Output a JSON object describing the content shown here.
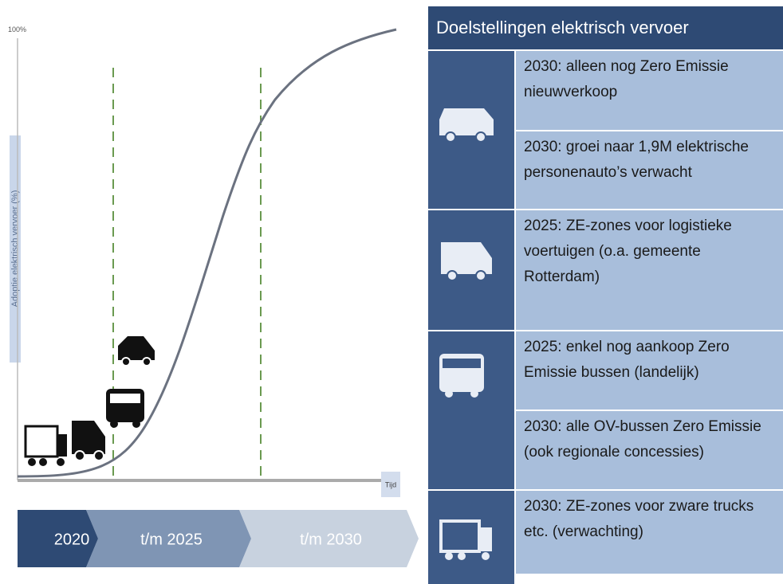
{
  "chart": {
    "top_label": "100%",
    "y_axis_label": "Adoptie elektrisch vervoer (%)",
    "x_axis_label": "Tijd"
  },
  "timeline": [
    "2020",
    "t/m 2025",
    "t/m 2030"
  ],
  "table": {
    "title": "Doelstellingen elektrisch vervoer",
    "groups": [
      {
        "items": [
          "2030: alleen nog Zero Emissie nieuwverkoop",
          "2030: groei naar 1,9M elektrische personenauto’s verwacht"
        ]
      },
      {
        "items": [
          "2025: ZE-zones voor logistieke voertuigen (o.a. gemeente Rotterdam)"
        ]
      },
      {
        "items": [
          "2025: enkel nog aankoop Zero Emissie bussen (landelijk)",
          "2030: alle OV-bussen Zero Emissie (ook regionale concessies)"
        ]
      },
      {
        "items": [
          "2030: ZE-zones voor zware trucks etc. (verwachting)"
        ]
      }
    ]
  }
}
